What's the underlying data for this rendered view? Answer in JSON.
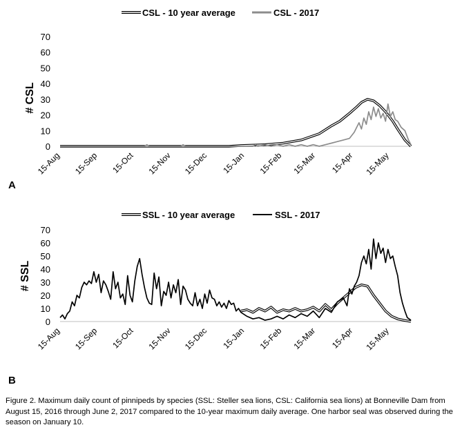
{
  "figure_caption": "Figure 2. Maximum daily count of pinnipeds by species (SSL: Steller sea lions, CSL: California sea lions) at Bonneville Dam from August 15, 2016 through June 2, 2017 compared to the 10-year maximum daily average.  One harbor seal was observed during the season on January 10.",
  "chart_data": [
    {
      "type": "line",
      "panel_label": "A",
      "ylabel": "# CSL",
      "ylim": [
        0,
        70
      ],
      "yticks": [
        "0",
        "10",
        "20",
        "30",
        "40",
        "50",
        "60",
        "70"
      ],
      "xticks": [
        "15-Aug",
        "15-Sep",
        "15-Oct",
        "15-Nov",
        "15-Dec",
        "15-Jan",
        "15-Feb",
        "15-Mar",
        "15-Apr",
        "15-May"
      ],
      "x_unit": "days since 15-Aug-2016",
      "xlim": [
        0,
        291
      ],
      "legend": [
        "CSL - 10 year average",
        "CSL - 2017"
      ],
      "series": [
        {
          "name": "CSL - 10 year average",
          "style": "double",
          "color": "#000000",
          "x": [
            0,
            60,
            90,
            120,
            140,
            150,
            170,
            185,
            200,
            215,
            225,
            232,
            240,
            246,
            250,
            255,
            260,
            265,
            270,
            276,
            280,
            286,
            291
          ],
          "y": [
            0,
            0,
            0,
            0,
            0,
            0.5,
            1,
            2,
            4,
            8,
            13,
            16,
            21,
            25,
            28,
            30,
            29,
            26,
            22,
            16,
            11,
            4,
            0
          ]
        },
        {
          "name": "CSL - 2017",
          "style": "single",
          "color": "#8c8c8c",
          "x": [
            0,
            70,
            72,
            74,
            100,
            102,
            104,
            130,
            150,
            160,
            162,
            164,
            170,
            175,
            180,
            185,
            190,
            195,
            200,
            205,
            210,
            215,
            220,
            225,
            230,
            235,
            240,
            242,
            244,
            246,
            248,
            250,
            252,
            254,
            256,
            258,
            260,
            262,
            264,
            266,
            268,
            270,
            272,
            274,
            276,
            278,
            280,
            283,
            286,
            289,
            291
          ],
          "y": [
            0,
            0,
            1,
            0,
            0,
            1,
            0,
            0,
            0,
            0,
            1,
            0,
            1,
            0,
            1,
            0,
            1,
            0,
            1,
            0,
            1,
            0,
            1,
            2,
            3,
            4,
            5,
            7,
            9,
            12,
            15,
            11,
            18,
            14,
            22,
            17,
            25,
            19,
            24,
            18,
            21,
            16,
            27,
            19,
            22,
            17,
            16,
            12,
            10,
            4,
            1
          ]
        }
      ]
    },
    {
      "type": "line",
      "panel_label": "B",
      "ylabel": "# SSL",
      "ylim": [
        0,
        70
      ],
      "yticks": [
        "0",
        "10",
        "20",
        "30",
        "40",
        "50",
        "60",
        "70"
      ],
      "xticks": [
        "15-Aug",
        "15-Sep",
        "15-Oct",
        "15-Nov",
        "15-Dec",
        "15-Jan",
        "15-Feb",
        "15-Mar",
        "15-Apr",
        "15-May"
      ],
      "x_unit": "days since 15-Aug-2016",
      "xlim": [
        0,
        291
      ],
      "legend": [
        "SSL - 10 year average",
        "SSL - 2017"
      ],
      "series": [
        {
          "name": "SSL - 10 year average",
          "style": "double",
          "color": "#000000",
          "x": [
            150,
            155,
            160,
            165,
            170,
            175,
            180,
            185,
            190,
            195,
            200,
            205,
            210,
            215,
            220,
            225,
            230,
            235,
            240,
            245,
            250,
            255,
            260,
            265,
            270,
            275,
            280,
            285,
            291
          ],
          "y": [
            8,
            9,
            7,
            10,
            8,
            11,
            7,
            9,
            8,
            10,
            8,
            9,
            11,
            8,
            13,
            9,
            14,
            18,
            22,
            26,
            28,
            27,
            20,
            14,
            8,
            4,
            2,
            1,
            0
          ]
        },
        {
          "name": "SSL - 2017",
          "style": "single",
          "color": "#000000",
          "x": [
            0,
            2,
            4,
            6,
            8,
            10,
            12,
            14,
            16,
            18,
            20,
            22,
            24,
            26,
            28,
            30,
            32,
            34,
            36,
            38,
            40,
            42,
            44,
            46,
            48,
            50,
            52,
            54,
            56,
            58,
            60,
            62,
            64,
            66,
            68,
            70,
            72,
            74,
            76,
            78,
            80,
            82,
            84,
            86,
            88,
            90,
            92,
            94,
            96,
            98,
            100,
            102,
            104,
            106,
            108,
            110,
            112,
            114,
            116,
            118,
            120,
            122,
            124,
            126,
            128,
            130,
            132,
            134,
            136,
            138,
            140,
            142,
            144,
            146,
            148,
            150,
            155,
            160,
            165,
            170,
            175,
            180,
            185,
            190,
            195,
            200,
            205,
            210,
            215,
            220,
            225,
            230,
            235,
            238,
            240,
            242,
            244,
            246,
            248,
            250,
            252,
            254,
            256,
            258,
            260,
            262,
            264,
            266,
            268,
            270,
            272,
            274,
            276,
            278,
            280,
            282,
            284,
            286,
            288,
            291
          ],
          "y": [
            3,
            5,
            2,
            6,
            8,
            15,
            12,
            20,
            18,
            26,
            30,
            28,
            31,
            29,
            38,
            30,
            36,
            22,
            31,
            28,
            23,
            17,
            38,
            25,
            30,
            18,
            21,
            13,
            35,
            20,
            15,
            31,
            42,
            48,
            36,
            26,
            18,
            14,
            13,
            37,
            25,
            34,
            12,
            23,
            20,
            30,
            18,
            28,
            22,
            32,
            13,
            27,
            24,
            17,
            14,
            12,
            22,
            12,
            17,
            10,
            21,
            14,
            24,
            18,
            17,
            12,
            15,
            11,
            14,
            10,
            16,
            13,
            14,
            8,
            10,
            7,
            4,
            2,
            3,
            1,
            2,
            4,
            2,
            5,
            3,
            6,
            4,
            8,
            3,
            10,
            7,
            15,
            18,
            12,
            25,
            21,
            27,
            30,
            35,
            45,
            50,
            44,
            55,
            40,
            63,
            48,
            60,
            52,
            56,
            45,
            55,
            48,
            50,
            42,
            35,
            22,
            14,
            8,
            3,
            1
          ]
        }
      ]
    }
  ]
}
